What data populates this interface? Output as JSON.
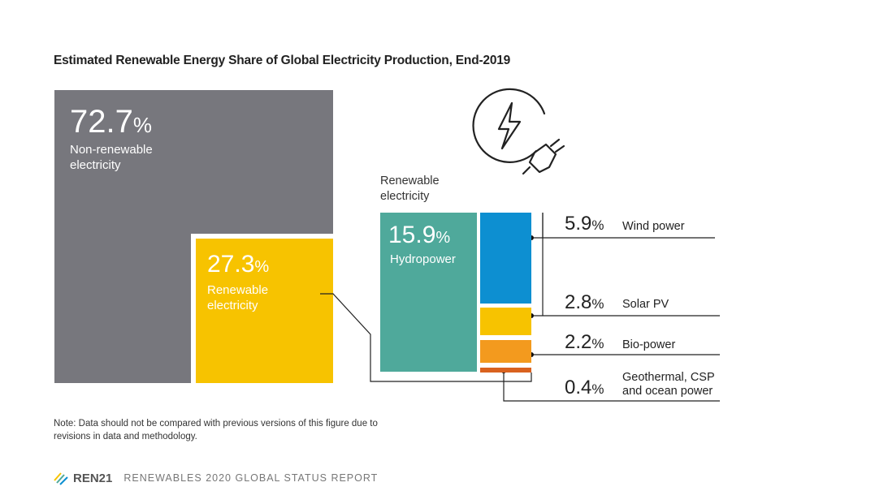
{
  "title": "Estimated Renewable Energy Share of Global Electricity Production, End-2019",
  "chart_data": {
    "type": "treemap",
    "title": "Estimated Renewable Energy Share of Global Electricity Production, End-2019",
    "unit": "%",
    "segments": [
      {
        "label": "Non-renewable electricity",
        "value": 72.7,
        "color": "#77777d"
      },
      {
        "label": "Renewable electricity",
        "value": 27.3,
        "color": "#f7c300"
      }
    ],
    "renewable_breakdown": [
      {
        "label": "Hydropower",
        "value": 15.9,
        "color": "#4fa99b"
      },
      {
        "label": "Wind power",
        "value": 5.9,
        "color": "#0d8fd1"
      },
      {
        "label": "Solar PV",
        "value": 2.8,
        "color": "#f7c300"
      },
      {
        "label": "Bio-power",
        "value": 2.2,
        "color": "#f39a1e"
      },
      {
        "label": "Geothermal, CSP and ocean power",
        "value": 0.4,
        "color": "#d9621f"
      }
    ]
  },
  "labels": {
    "nonren_pct": "72.7",
    "nonren_label": "Non-renewable\nelectricity",
    "ren_pct": "27.3",
    "ren_label": "Renewable\nelectricity",
    "ren_head": "Renewable\nelectricity",
    "hydro_pct": "15.9",
    "hydro_label": "Hydropower",
    "wind_pct": "5.9",
    "wind_label": "Wind power",
    "solar_pct": "2.8",
    "solar_label": "Solar PV",
    "bio_pct": "2.2",
    "bio_label": "Bio-power",
    "geo_pct": "0.4",
    "geo_label": "Geothermal, CSP\nand ocean power",
    "pct_unit": "%"
  },
  "icons": [
    "electricity-plug-icon",
    "ren21-logo-icon"
  ],
  "note": "Note: Data should not be compared with previous versions of this figure due to revisions in data and methodology.",
  "footer": {
    "brand": "REN21",
    "report": "RENEWABLES 2020 GLOBAL STATUS REPORT"
  }
}
